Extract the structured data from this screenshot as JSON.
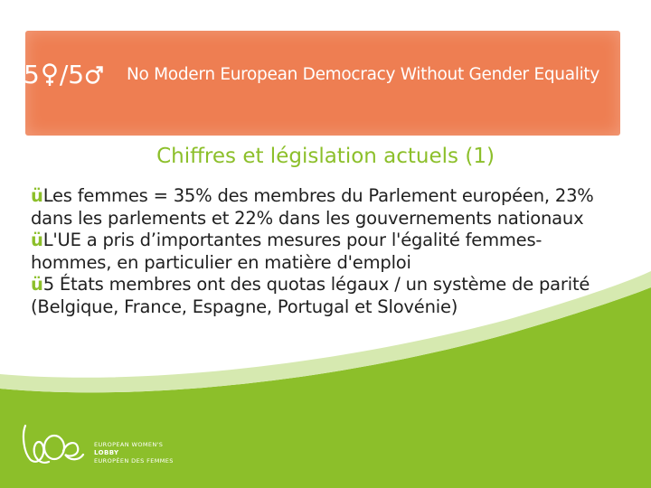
{
  "banner": {
    "logo_left": "5",
    "logo_mid": "/5",
    "tagline": "No Modern European Democracy Without Gender Equality",
    "bg_color": "#ee7e52"
  },
  "slide": {
    "title": "Chiffres et législation actuels  (1)",
    "accent_color": "#8cbf2a",
    "bullet_glyph": "ü",
    "bullets": [
      "Les femmes = 35% des membres du Parlement européen, 23% dans les parlements et 22% dans les gouvernements nationaux",
      "L'UE a pris d’importantes mesures pour l'égalité femmes-hommes, en particulier en matière d'emploi",
      "5 États membres ont des quotas légaux / un système de parité (Belgique, France, Espagne, Portugal et Slovénie)"
    ]
  },
  "footer_logo": {
    "line1": "EUROPEAN WOMEN'S",
    "line2": "LOBBY",
    "line3": "EUROPÉEN DES FEMMES"
  }
}
